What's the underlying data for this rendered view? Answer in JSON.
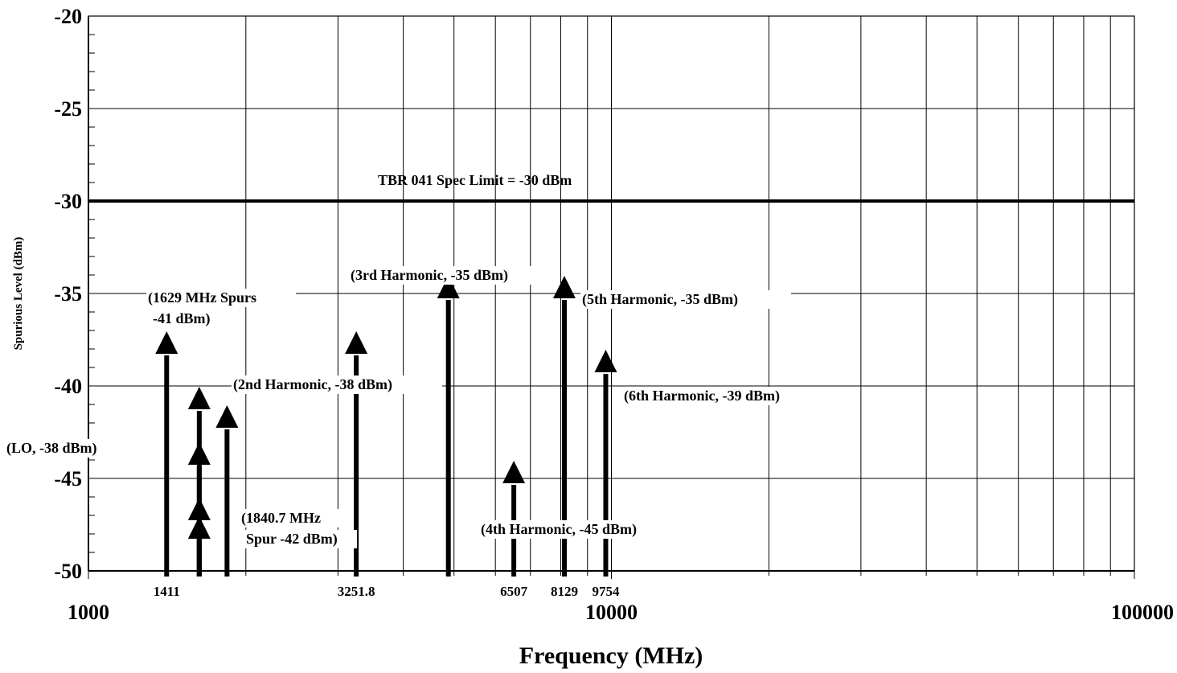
{
  "chart_data": {
    "type": "stem",
    "title": "",
    "xlabel": "Frequency (MHz)",
    "ylabel": "Spurious Level (dBm)",
    "x_scale": "log",
    "xlim": [
      1000,
      100000
    ],
    "ylim": [
      -50,
      -20
    ],
    "grid": true,
    "y_ticks": [
      "-20",
      "-25",
      "-30",
      "-35",
      "-40",
      "-45",
      "-50"
    ],
    "x_major_ticks": [
      "1000",
      "10000",
      "100000"
    ],
    "x_marked_ticks": [
      "1411",
      "3251.8",
      "6507",
      "8129",
      "9754"
    ],
    "limit_line": {
      "value": -30,
      "label": "TBR 041 Spec Limit  = -30  dBm"
    },
    "spurs": [
      {
        "x": 1411,
        "y": -38
      },
      {
        "x": 1629,
        "y": -41
      },
      {
        "x": 1629,
        "y": -44
      },
      {
        "x": 1629,
        "y": -47
      },
      {
        "x": 1629,
        "y": -48
      },
      {
        "x": 1840.7,
        "y": -42
      },
      {
        "x": 3251.8,
        "y": -38
      },
      {
        "x": 4877.7,
        "y": -35
      },
      {
        "x": 6507,
        "y": -45
      },
      {
        "x": 8129,
        "y": -35
      },
      {
        "x": 9754,
        "y": -39
      }
    ],
    "annotations": [
      {
        "text": "(LO, -38 dBm)"
      },
      {
        "text": "(1629 MHz Spurs"
      },
      {
        "text": "-41 dBm)"
      },
      {
        "text": "(1840.7 MHz"
      },
      {
        "text": "Spur -42 dBm)"
      },
      {
        "text": "(2nd Harmonic, -38 dBm)"
      },
      {
        "text": "(3rd Harmonic, -35 dBm)"
      },
      {
        "text": "(4th Harmonic, -45 dBm)"
      },
      {
        "text": "(5th Harmonic, -35 dBm)"
      },
      {
        "text": "(6th Harmonic, -39 dBm)"
      }
    ]
  }
}
